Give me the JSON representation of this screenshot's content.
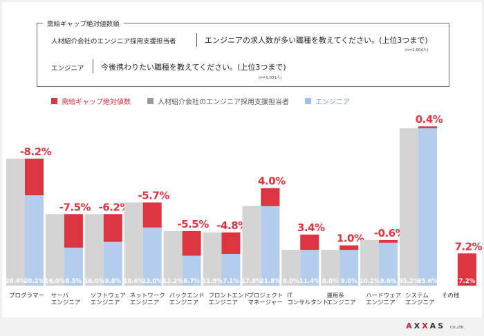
{
  "question_box": {
    "title": "需給ギャップ絶対値数順",
    "q1_respondent": "人材紹介会社のエンジニア採用支援担当者",
    "q1_text": "エンジニアの求人数が多い職種を教えてください。(上位3つまで)",
    "q1_n": "(n=1,004人)",
    "q2_respondent": "エンジニア",
    "q2_text": "今後携わりたい職種を教えてください。(上位3つまで)",
    "q2_n": "(n=1,031人)"
  },
  "legend": {
    "gap": "需給ギャップ絶対値数",
    "recruiter": "人材紹介会社のエンジニア採用支援担当者",
    "engineer": "エンジニア"
  },
  "colors": {
    "gap": "#dc3440",
    "recruiter": "#d4d4d4",
    "engineer": "#b4cdec",
    "gap_label": "#dc3440"
  },
  "logo": {
    "text": "AXXAS",
    "suffix": "CO.,LTD."
  },
  "chart_data": {
    "type": "bar",
    "categories": [
      [
        "プログラマー"
      ],
      [
        "サーバ",
        "エンジニア"
      ],
      [
        "ソフトウェア",
        "エンジニア"
      ],
      [
        "ネットワーク",
        "エンジニア"
      ],
      [
        "バックエンド",
        "エンジニア"
      ],
      [
        "フロントエンド",
        "エンジニア"
      ],
      [
        "プロジェクト",
        "マネージャー"
      ],
      [
        "IT",
        "コンサルタント"
      ],
      [
        "運用系",
        "エンジニア"
      ],
      [
        "ハードウェア",
        "エンジニア"
      ],
      [
        "システム",
        "エンジニア"
      ],
      [
        "その他"
      ]
    ],
    "series": [
      {
        "name": "人材紹介会社のエンジニア採用支援担当者",
        "values": [
          28.4,
          16.0,
          16.0,
          18.6,
          12.2,
          11.9,
          17.8,
          8.0,
          8.0,
          10.2,
          35.2,
          0.0
        ]
      },
      {
        "name": "エンジニア",
        "values": [
          20.2,
          8.5,
          9.8,
          13.0,
          6.7,
          7.1,
          21.8,
          11.4,
          9.0,
          9.6,
          35.6,
          7.2
        ]
      }
    ],
    "value_labels": {
      "recruiter": [
        "28.4%",
        "16.0%",
        "16.0%",
        "18.6%",
        "12.2%",
        "11.9%",
        "17.8%",
        "8.0%",
        "8.0%",
        "10.2%",
        "35.2%",
        "0%"
      ],
      "engineer": [
        "20.2%",
        "8.5%",
        "9.8%",
        "13.0%",
        "6.7%",
        "7.1%",
        "21.8%",
        "11.4%",
        "9.0%",
        "9.6%",
        "35.6%",
        "7.2%"
      ]
    },
    "gap_labels": [
      "-8.2%",
      "-7.5%",
      "-6.2%",
      "-5.7%",
      "-5.5%",
      "-4.8%",
      "4.0%",
      "3.4%",
      "1.0%",
      "-0.6%",
      "0.4%",
      "7.2%"
    ],
    "ylim": [
      0,
      37
    ]
  }
}
